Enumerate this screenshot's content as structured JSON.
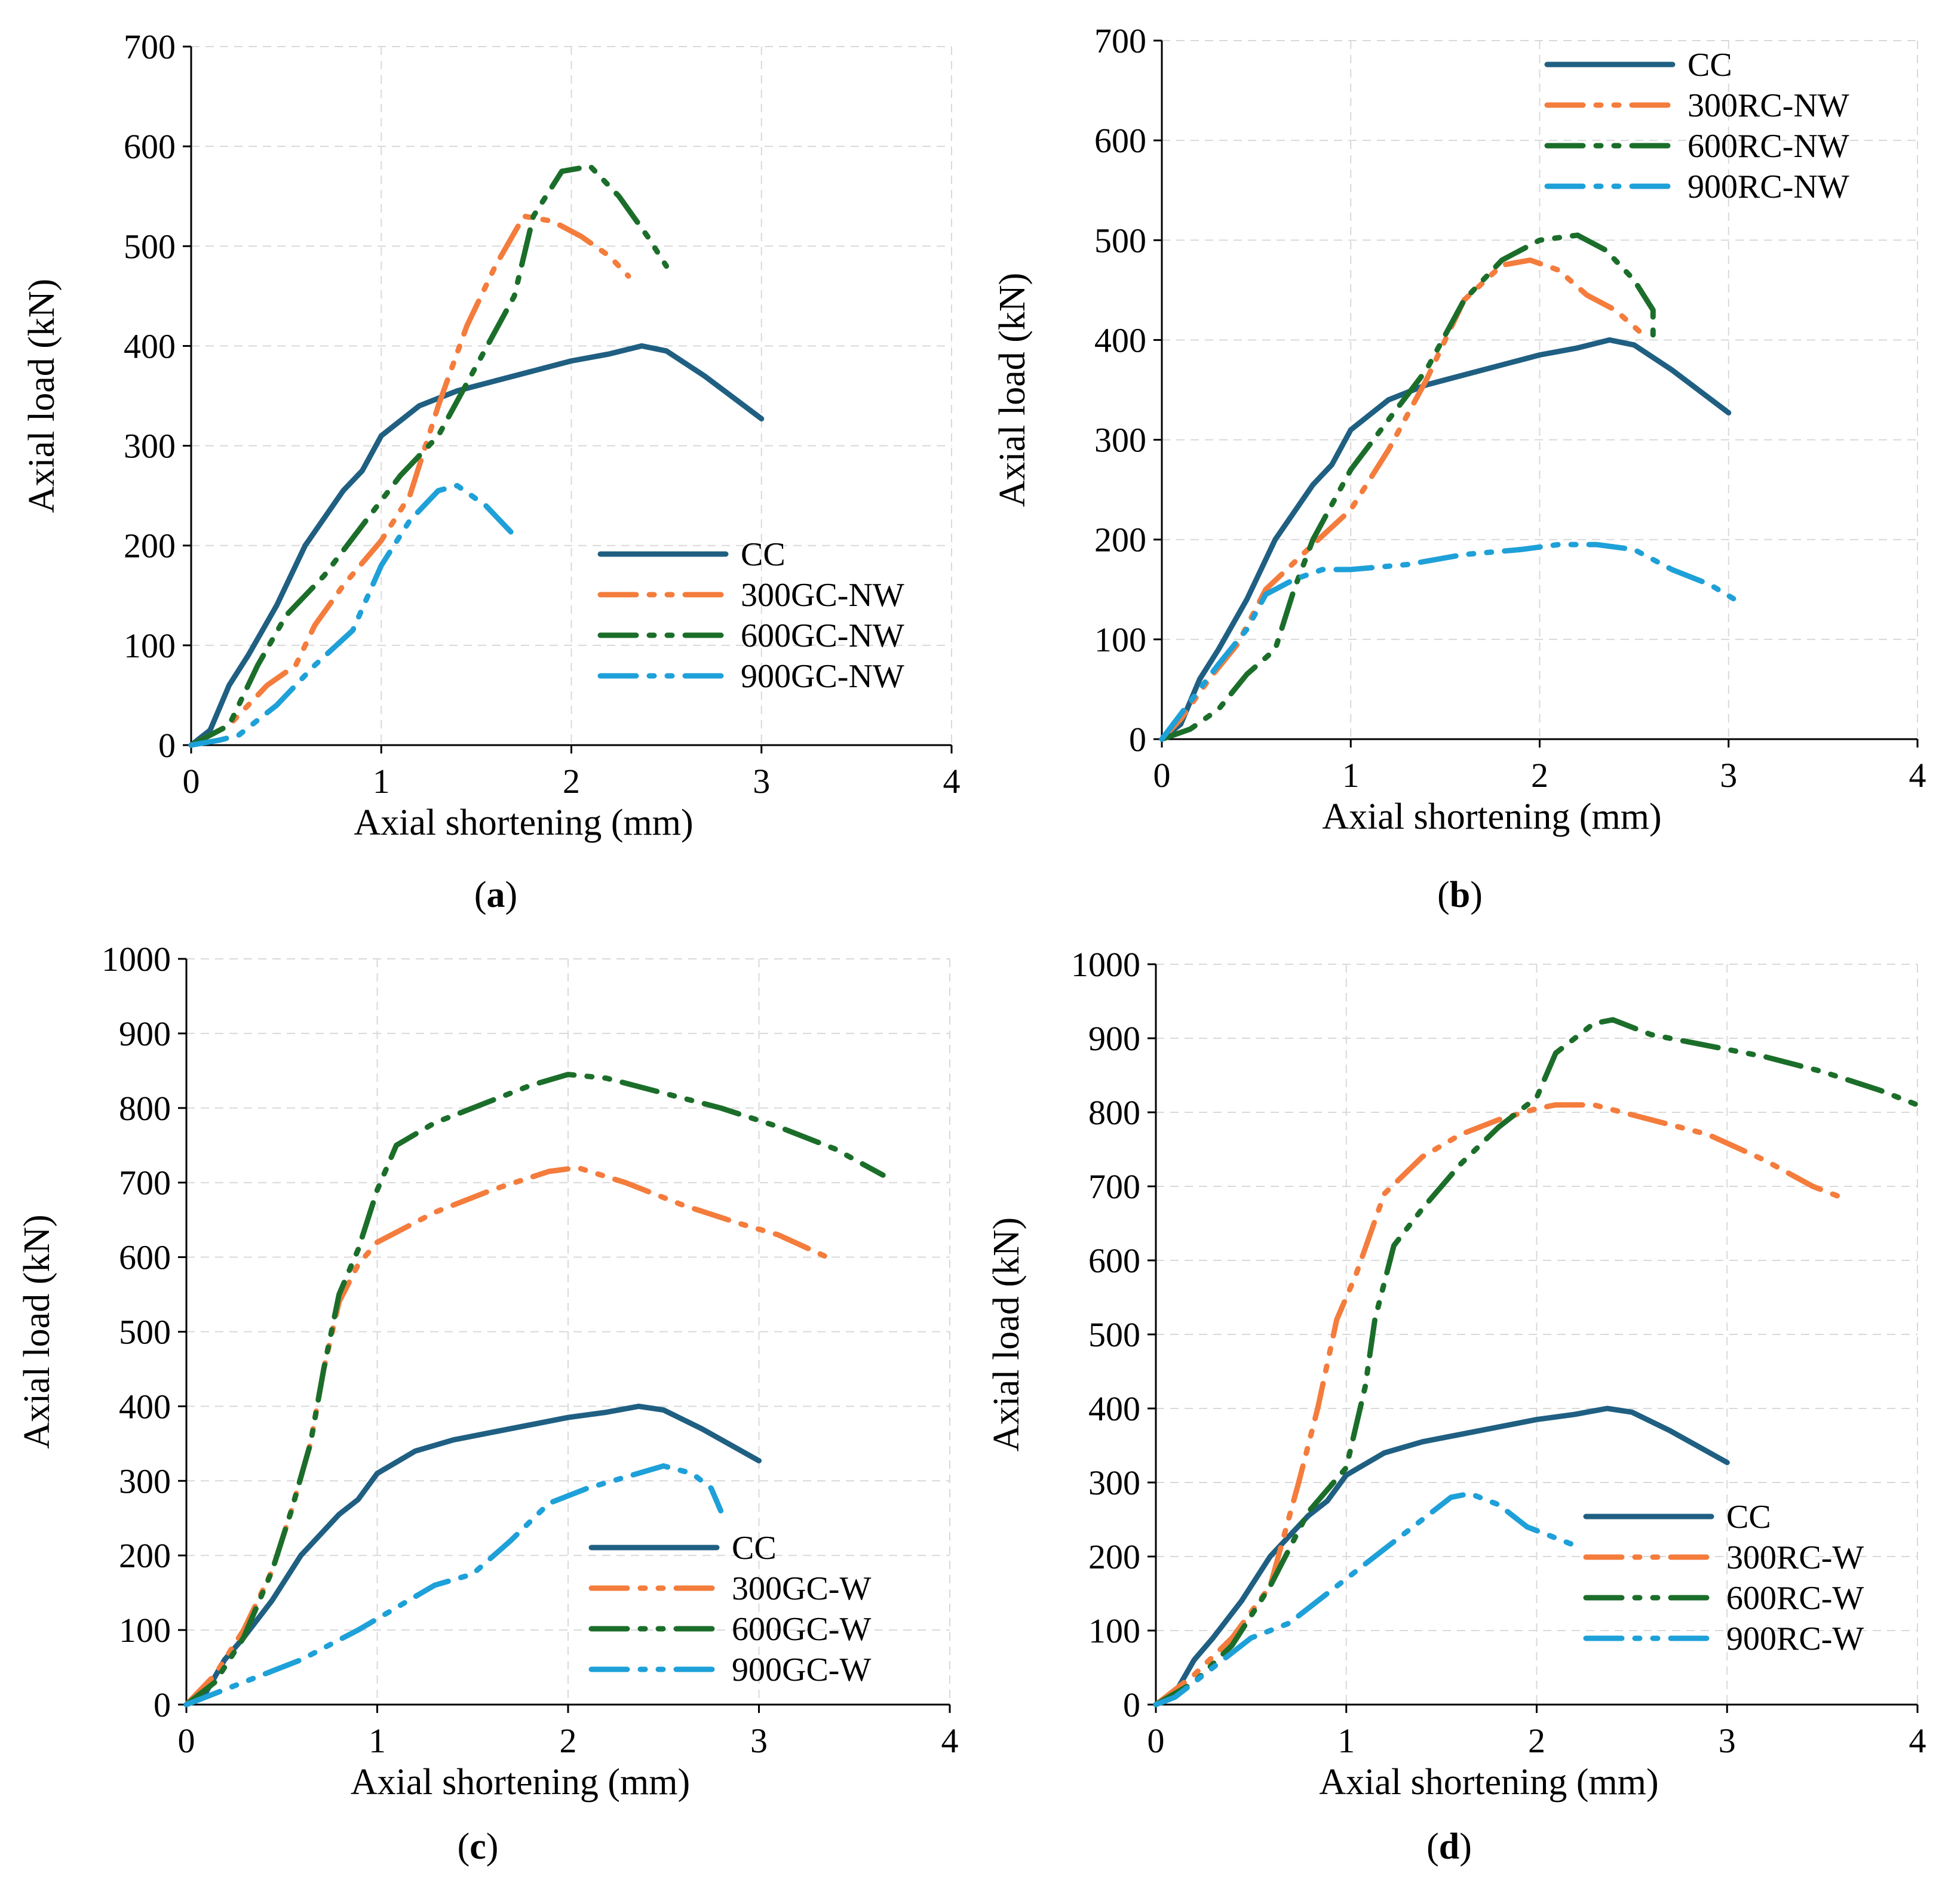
{
  "colors": {
    "CC": "#1f5f82",
    "300": "#f47c3c",
    "600": "#1b6e2a",
    "900": "#1ea0d8",
    "grid": "#d9d9d9"
  },
  "panel_labels": {
    "a": {
      "open": "(",
      "letter": "a",
      "close": ")"
    },
    "b": {
      "open": "(",
      "letter": "b",
      "close": ")"
    },
    "c": {
      "open": "(",
      "letter": "c",
      "close": ")"
    },
    "d": {
      "open": "(",
      "letter": "d",
      "close": ")"
    }
  },
  "chart_data": [
    {
      "id": "a",
      "type": "line",
      "xlabel": "Axial shortening (mm)",
      "ylabel": "Axial load (kN)",
      "xlim": [
        0,
        4
      ],
      "ylim": [
        0,
        700
      ],
      "xticks": [
        0,
        1,
        2,
        3,
        4
      ],
      "yticks": [
        0,
        100,
        200,
        300,
        400,
        500,
        600,
        700
      ],
      "grid": true,
      "legend_position": "bottom-right",
      "series": [
        {
          "name": "CC",
          "style": "solid",
          "color_key": "CC",
          "x": [
            0,
            0.1,
            0.2,
            0.3,
            0.45,
            0.6,
            0.8,
            0.9,
            1.0,
            1.2,
            1.4,
            1.6,
            1.8,
            2.0,
            2.2,
            2.37,
            2.5,
            2.7,
            3.0
          ],
          "y": [
            0,
            15,
            60,
            90,
            140,
            200,
            255,
            275,
            310,
            340,
            355,
            365,
            375,
            385,
            392,
            400,
            395,
            370,
            327
          ]
        },
        {
          "name": "300GC-NW",
          "style": "dash-dot",
          "color_key": "300",
          "x": [
            0,
            0.2,
            0.4,
            0.55,
            0.65,
            0.8,
            1.0,
            1.15,
            1.3,
            1.45,
            1.6,
            1.75,
            1.9,
            2.05,
            2.2,
            2.3
          ],
          "y": [
            0,
            20,
            60,
            80,
            120,
            160,
            205,
            250,
            340,
            420,
            480,
            530,
            525,
            510,
            490,
            470
          ]
        },
        {
          "name": "600GC-NW",
          "style": "dash-dot",
          "color_key": "600",
          "x": [
            0,
            0.2,
            0.35,
            0.5,
            0.7,
            0.9,
            1.1,
            1.3,
            1.5,
            1.7,
            1.8,
            1.95,
            2.1,
            2.25,
            2.4,
            2.5
          ],
          "y": [
            0,
            20,
            80,
            130,
            170,
            220,
            270,
            310,
            380,
            450,
            530,
            575,
            580,
            550,
            510,
            480
          ]
        },
        {
          "name": "900GC-NW",
          "style": "dash-dot",
          "color_key": "900",
          "x": [
            0,
            0.15,
            0.25,
            0.45,
            0.65,
            0.85,
            1.0,
            1.15,
            1.3,
            1.4,
            1.55,
            1.7
          ],
          "y": [
            0,
            5,
            10,
            40,
            80,
            115,
            180,
            225,
            255,
            260,
            240,
            210
          ]
        }
      ]
    },
    {
      "id": "b",
      "type": "line",
      "xlabel": "Axial shortening (mm)",
      "ylabel": "Axial load (kN)",
      "xlim": [
        0,
        4
      ],
      "ylim": [
        0,
        700
      ],
      "xticks": [
        0,
        1,
        2,
        3,
        4
      ],
      "yticks": [
        0,
        100,
        200,
        300,
        400,
        500,
        600,
        700
      ],
      "grid": true,
      "legend_position": "top-right",
      "series": [
        {
          "name": "CC",
          "style": "solid",
          "color_key": "CC",
          "x": [
            0,
            0.1,
            0.2,
            0.3,
            0.45,
            0.6,
            0.8,
            0.9,
            1.0,
            1.2,
            1.4,
            1.6,
            1.8,
            2.0,
            2.2,
            2.37,
            2.5,
            2.7,
            3.0
          ],
          "y": [
            0,
            15,
            60,
            90,
            140,
            200,
            255,
            275,
            310,
            340,
            355,
            365,
            375,
            385,
            392,
            400,
            395,
            370,
            327
          ]
        },
        {
          "name": "300RC-NW",
          "style": "dash-dot",
          "color_key": "300",
          "x": [
            0,
            0.1,
            0.25,
            0.4,
            0.55,
            0.8,
            1.0,
            1.2,
            1.4,
            1.6,
            1.8,
            1.95,
            2.1,
            2.25,
            2.4,
            2.55
          ],
          "y": [
            0,
            20,
            60,
            95,
            150,
            195,
            230,
            290,
            360,
            440,
            475,
            480,
            470,
            445,
            430,
            405
          ]
        },
        {
          "name": "600RC-NW",
          "style": "dash-dot",
          "color_key": "600",
          "x": [
            0,
            0.15,
            0.3,
            0.45,
            0.6,
            0.7,
            0.8,
            1.0,
            1.2,
            1.4,
            1.6,
            1.8,
            2.0,
            2.2,
            2.35,
            2.5,
            2.6,
            2.6
          ],
          "y": [
            0,
            10,
            30,
            65,
            90,
            150,
            200,
            270,
            320,
            370,
            440,
            480,
            500,
            505,
            490,
            460,
            430,
            400
          ]
        },
        {
          "name": "900RC-NW",
          "style": "dash-dot",
          "color_key": "900",
          "x": [
            0,
            0.1,
            0.2,
            0.3,
            0.45,
            0.55,
            0.7,
            0.85,
            1.0,
            1.3,
            1.6,
            1.9,
            2.1,
            2.3,
            2.5,
            2.7,
            2.9,
            3.05
          ],
          "y": [
            0,
            25,
            50,
            75,
            110,
            145,
            160,
            170,
            170,
            175,
            185,
            190,
            195,
            195,
            190,
            170,
            155,
            138
          ]
        }
      ]
    },
    {
      "id": "c",
      "type": "line",
      "xlabel": "Axial shortening (mm)",
      "ylabel": "Axial load (kN)",
      "xlim": [
        0,
        4
      ],
      "ylim": [
        0,
        1000
      ],
      "xticks": [
        0,
        1,
        2,
        3,
        4
      ],
      "yticks": [
        0,
        100,
        200,
        300,
        400,
        500,
        600,
        700,
        800,
        900,
        1000
      ],
      "grid": true,
      "legend_position": "bottom-right",
      "series": [
        {
          "name": "CC",
          "style": "solid",
          "color_key": "CC",
          "x": [
            0,
            0.1,
            0.2,
            0.3,
            0.45,
            0.6,
            0.8,
            0.9,
            1.0,
            1.2,
            1.4,
            1.6,
            1.8,
            2.0,
            2.2,
            2.37,
            2.5,
            2.7,
            3.0
          ],
          "y": [
            0,
            15,
            60,
            90,
            140,
            200,
            255,
            275,
            310,
            340,
            355,
            365,
            375,
            385,
            392,
            400,
            395,
            370,
            327
          ]
        },
        {
          "name": "300GC-W",
          "style": "dash-dot",
          "color_key": "300",
          "x": [
            0,
            0.15,
            0.3,
            0.45,
            0.55,
            0.65,
            0.72,
            0.8,
            0.9,
            1.0,
            1.3,
            1.6,
            1.9,
            2.05,
            2.3,
            2.6,
            2.9,
            3.1,
            3.4
          ],
          "y": [
            0,
            40,
            100,
            180,
            260,
            350,
            450,
            540,
            590,
            620,
            660,
            690,
            715,
            720,
            700,
            670,
            645,
            630,
            595
          ]
        },
        {
          "name": "600GC-W",
          "style": "dash-dot",
          "color_key": "600",
          "x": [
            0,
            0.15,
            0.3,
            0.45,
            0.55,
            0.65,
            0.72,
            0.8,
            0.9,
            1.0,
            1.1,
            1.3,
            1.5,
            1.8,
            2.0,
            2.2,
            2.5,
            2.8,
            3.1,
            3.4,
            3.65
          ],
          "y": [
            0,
            30,
            90,
            180,
            260,
            350,
            450,
            550,
            610,
            690,
            750,
            780,
            800,
            830,
            845,
            840,
            820,
            800,
            775,
            745,
            710
          ]
        },
        {
          "name": "900GC-W",
          "style": "dash-dot",
          "color_key": "900",
          "x": [
            0,
            0.2,
            0.4,
            0.6,
            0.9,
            1.1,
            1.3,
            1.5,
            1.7,
            1.9,
            2.1,
            2.3,
            2.5,
            2.65,
            2.75,
            2.8
          ],
          "y": [
            0,
            20,
            40,
            60,
            100,
            130,
            160,
            175,
            220,
            270,
            290,
            305,
            320,
            310,
            290,
            260
          ]
        }
      ]
    },
    {
      "id": "d",
      "type": "line",
      "xlabel": "Axial shortening (mm)",
      "ylabel": "Axial load (kN)",
      "xlim": [
        0,
        4
      ],
      "ylim": [
        0,
        1000
      ],
      "xticks": [
        0,
        1,
        2,
        3,
        4
      ],
      "yticks": [
        0,
        100,
        200,
        300,
        400,
        500,
        600,
        700,
        800,
        900,
        1000
      ],
      "grid": true,
      "legend_position": "bottom-right",
      "series": [
        {
          "name": "CC",
          "style": "solid",
          "color_key": "CC",
          "x": [
            0,
            0.1,
            0.2,
            0.3,
            0.45,
            0.6,
            0.8,
            0.9,
            1.0,
            1.2,
            1.4,
            1.6,
            1.8,
            2.0,
            2.2,
            2.37,
            2.5,
            2.7,
            3.0
          ],
          "y": [
            0,
            15,
            60,
            90,
            140,
            200,
            255,
            275,
            310,
            340,
            355,
            365,
            375,
            385,
            392,
            400,
            395,
            370,
            327
          ]
        },
        {
          "name": "300RC-W",
          "style": "dash-dot",
          "color_key": "300",
          "x": [
            0,
            0.2,
            0.4,
            0.6,
            0.75,
            0.85,
            0.95,
            1.05,
            1.2,
            1.4,
            1.6,
            1.8,
            2.0,
            2.1,
            2.3,
            2.6,
            2.9,
            3.2,
            3.45,
            3.6
          ],
          "y": [
            0,
            40,
            90,
            160,
            300,
            400,
            520,
            580,
            690,
            740,
            770,
            790,
            805,
            810,
            810,
            790,
            770,
            735,
            700,
            685
          ]
        },
        {
          "name": "600RC-W",
          "style": "dash-dot",
          "color_key": "600",
          "x": [
            0,
            0.2,
            0.4,
            0.6,
            0.8,
            1.0,
            1.1,
            1.15,
            1.25,
            1.4,
            1.6,
            1.8,
            2.0,
            2.1,
            2.3,
            2.4,
            2.6,
            2.9,
            3.2,
            3.5,
            3.8,
            4.0
          ],
          "y": [
            0,
            30,
            80,
            160,
            260,
            320,
            430,
            520,
            620,
            670,
            730,
            780,
            820,
            880,
            920,
            925,
            905,
            890,
            875,
            855,
            830,
            810
          ]
        },
        {
          "name": "900RC-W",
          "style": "dash-dot",
          "color_key": "900",
          "x": [
            0,
            0.1,
            0.2,
            0.35,
            0.5,
            0.7,
            0.85,
            1.0,
            1.2,
            1.4,
            1.55,
            1.65,
            1.8,
            1.95,
            2.1,
            2.2
          ],
          "y": [
            0,
            10,
            30,
            60,
            90,
            110,
            140,
            170,
            210,
            250,
            280,
            285,
            270,
            240,
            225,
            215
          ]
        }
      ]
    }
  ]
}
